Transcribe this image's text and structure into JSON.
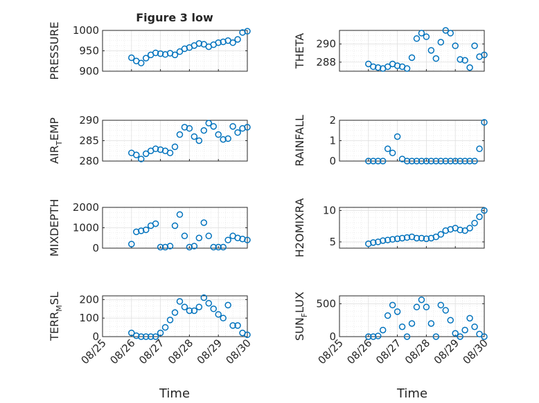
{
  "figure_title": "Figure 3 low",
  "x_label": "Time",
  "colors": {
    "marker": "#0072BD",
    "axis": "#262626",
    "grid": "#dfdfdf",
    "background": "#ffffff"
  },
  "chart_data": [
    {
      "type": "scatter",
      "ylabel": "PRESSURE",
      "ylabel_sub": "",
      "ylabel_tail": "",
      "title": "Figure 3 low",
      "ylim": [
        900,
        1000
      ],
      "yticks": [
        900,
        950,
        1000
      ],
      "xlim": [
        "2016-08-25",
        "2016-08-30"
      ],
      "xticks": [
        "08/25",
        "08/26",
        "08/27",
        "08/28",
        "08/29",
        "08/30"
      ],
      "grid": true,
      "x": [
        "2016-08-26T00:00",
        "2016-08-26T04:00",
        "2016-08-26T08:00",
        "2016-08-26T12:00",
        "2016-08-26T16:00",
        "2016-08-26T20:00",
        "2016-08-27T00:00",
        "2016-08-27T04:00",
        "2016-08-27T08:00",
        "2016-08-27T12:00",
        "2016-08-27T16:00",
        "2016-08-27T20:00",
        "2016-08-28T00:00",
        "2016-08-28T04:00",
        "2016-08-28T08:00",
        "2016-08-28T12:00",
        "2016-08-28T16:00",
        "2016-08-28T20:00",
        "2016-08-29T00:00",
        "2016-08-29T04:00",
        "2016-08-29T08:00",
        "2016-08-29T12:00",
        "2016-08-29T16:00",
        "2016-08-29T20:00",
        "2016-08-30T00:00"
      ],
      "y": [
        933,
        925,
        920,
        932,
        940,
        945,
        943,
        941,
        944,
        940,
        948,
        955,
        958,
        963,
        968,
        966,
        960,
        965,
        970,
        972,
        975,
        970,
        978,
        995,
        998
      ]
    },
    {
      "type": "scatter",
      "ylabel": "THETA",
      "ylabel_sub": "",
      "ylabel_tail": "",
      "ylim": [
        287,
        291.5
      ],
      "yticks": [
        288,
        290
      ],
      "xlim": [
        "2016-08-25",
        "2016-08-30"
      ],
      "xticks": [
        "08/25",
        "08/26",
        "08/27",
        "08/28",
        "08/29",
        "08/30"
      ],
      "grid": true,
      "x": [
        "2016-08-26T00:00",
        "2016-08-26T04:00",
        "2016-08-26T08:00",
        "2016-08-26T12:00",
        "2016-08-26T16:00",
        "2016-08-26T20:00",
        "2016-08-27T00:00",
        "2016-08-27T04:00",
        "2016-08-27T08:00",
        "2016-08-27T12:00",
        "2016-08-27T16:00",
        "2016-08-27T20:00",
        "2016-08-28T00:00",
        "2016-08-28T04:00",
        "2016-08-28T08:00",
        "2016-08-28T12:00",
        "2016-08-28T16:00",
        "2016-08-28T20:00",
        "2016-08-29T00:00",
        "2016-08-29T04:00",
        "2016-08-29T08:00",
        "2016-08-29T12:00",
        "2016-08-29T16:00",
        "2016-08-29T20:00",
        "2016-08-30T00:00"
      ],
      "y": [
        287.8,
        287.5,
        287.4,
        287.3,
        287.5,
        287.8,
        287.6,
        287.5,
        287.3,
        288.5,
        290.6,
        291.2,
        290.8,
        289.3,
        288.4,
        290.2,
        291.5,
        291.2,
        289.8,
        288.3,
        288.2,
        287.4,
        289.8,
        288.6,
        288.8
      ]
    },
    {
      "type": "scatter",
      "ylabel": "AIR",
      "ylabel_sub": "T",
      "ylabel_tail": "EMP",
      "ylim": [
        280,
        290
      ],
      "yticks": [
        280,
        285,
        290
      ],
      "xlim": [
        "2016-08-25",
        "2016-08-30"
      ],
      "xticks": [
        "08/25",
        "08/26",
        "08/27",
        "08/28",
        "08/29",
        "08/30"
      ],
      "grid": true,
      "x": [
        "2016-08-26T00:00",
        "2016-08-26T04:00",
        "2016-08-26T08:00",
        "2016-08-26T12:00",
        "2016-08-26T16:00",
        "2016-08-26T20:00",
        "2016-08-27T00:00",
        "2016-08-27T04:00",
        "2016-08-27T08:00",
        "2016-08-27T12:00",
        "2016-08-27T16:00",
        "2016-08-27T20:00",
        "2016-08-28T00:00",
        "2016-08-28T04:00",
        "2016-08-28T08:00",
        "2016-08-28T12:00",
        "2016-08-28T16:00",
        "2016-08-28T20:00",
        "2016-08-29T00:00",
        "2016-08-29T04:00",
        "2016-08-29T08:00",
        "2016-08-29T12:00",
        "2016-08-29T16:00",
        "2016-08-29T20:00",
        "2016-08-30T00:00"
      ],
      "y": [
        282.0,
        281.5,
        280.5,
        281.8,
        282.5,
        283.0,
        282.8,
        282.5,
        282.0,
        283.5,
        286.5,
        288.3,
        288.0,
        286.0,
        285.0,
        287.5,
        289.3,
        288.5,
        286.5,
        285.3,
        285.5,
        288.5,
        287.0,
        288.0,
        288.3
      ]
    },
    {
      "type": "scatter",
      "ylabel": "RAINFALL",
      "ylabel_sub": "",
      "ylabel_tail": "",
      "ylim": [
        0,
        2
      ],
      "yticks": [
        0,
        1,
        2
      ],
      "xlim": [
        "2016-08-25",
        "2016-08-30"
      ],
      "xticks": [
        "08/25",
        "08/26",
        "08/27",
        "08/28",
        "08/29",
        "08/30"
      ],
      "grid": true,
      "x": [
        "2016-08-26T00:00",
        "2016-08-26T04:00",
        "2016-08-26T08:00",
        "2016-08-26T12:00",
        "2016-08-26T16:00",
        "2016-08-26T20:00",
        "2016-08-27T00:00",
        "2016-08-27T04:00",
        "2016-08-27T08:00",
        "2016-08-27T12:00",
        "2016-08-27T16:00",
        "2016-08-27T20:00",
        "2016-08-28T00:00",
        "2016-08-28T04:00",
        "2016-08-28T08:00",
        "2016-08-28T12:00",
        "2016-08-28T16:00",
        "2016-08-28T20:00",
        "2016-08-29T00:00",
        "2016-08-29T04:00",
        "2016-08-29T08:00",
        "2016-08-29T12:00",
        "2016-08-29T16:00",
        "2016-08-29T20:00",
        "2016-08-30T00:00"
      ],
      "y": [
        0,
        0,
        0,
        0,
        0.6,
        0.4,
        1.2,
        0.1,
        0,
        0,
        0,
        0,
        0,
        0,
        0,
        0,
        0,
        0,
        0,
        0,
        0,
        0,
        0,
        0.6,
        1.9
      ]
    },
    {
      "type": "scatter",
      "ylabel": "MIXDEPTH",
      "ylabel_sub": "",
      "ylabel_tail": "",
      "ylim": [
        0,
        2000
      ],
      "yticks": [
        0,
        1000,
        2000
      ],
      "xlim": [
        "2016-08-25",
        "2016-08-30"
      ],
      "xticks": [
        "08/25",
        "08/26",
        "08/27",
        "08/28",
        "08/29",
        "08/30"
      ],
      "grid": true,
      "x": [
        "2016-08-26T00:00",
        "2016-08-26T04:00",
        "2016-08-26T08:00",
        "2016-08-26T12:00",
        "2016-08-26T16:00",
        "2016-08-26T20:00",
        "2016-08-27T00:00",
        "2016-08-27T04:00",
        "2016-08-27T08:00",
        "2016-08-27T12:00",
        "2016-08-27T16:00",
        "2016-08-27T20:00",
        "2016-08-28T00:00",
        "2016-08-28T04:00",
        "2016-08-28T08:00",
        "2016-08-28T12:00",
        "2016-08-28T16:00",
        "2016-08-28T20:00",
        "2016-08-29T00:00",
        "2016-08-29T04:00",
        "2016-08-29T08:00",
        "2016-08-29T12:00",
        "2016-08-29T16:00",
        "2016-08-29T20:00",
        "2016-08-30T00:00"
      ],
      "y": [
        200,
        800,
        850,
        900,
        1100,
        1200,
        50,
        50,
        100,
        1100,
        1650,
        600,
        50,
        100,
        500,
        1250,
        600,
        50,
        50,
        50,
        400,
        600,
        500,
        450,
        400
      ]
    },
    {
      "type": "scatter",
      "ylabel": "H2OMIXRA",
      "ylabel_sub": "",
      "ylabel_tail": "",
      "ylim": [
        4,
        10.5
      ],
      "yticks": [
        5,
        10
      ],
      "xlim": [
        "2016-08-25",
        "2016-08-30"
      ],
      "xticks": [
        "08/25",
        "08/26",
        "08/27",
        "08/28",
        "08/29",
        "08/30"
      ],
      "grid": true,
      "x": [
        "2016-08-26T00:00",
        "2016-08-26T04:00",
        "2016-08-26T08:00",
        "2016-08-26T12:00",
        "2016-08-26T16:00",
        "2016-08-26T20:00",
        "2016-08-27T00:00",
        "2016-08-27T04:00",
        "2016-08-27T08:00",
        "2016-08-27T12:00",
        "2016-08-27T16:00",
        "2016-08-27T20:00",
        "2016-08-28T00:00",
        "2016-08-28T04:00",
        "2016-08-28T08:00",
        "2016-08-28T12:00",
        "2016-08-28T16:00",
        "2016-08-28T20:00",
        "2016-08-29T00:00",
        "2016-08-29T04:00",
        "2016-08-29T08:00",
        "2016-08-29T12:00",
        "2016-08-29T16:00",
        "2016-08-29T20:00",
        "2016-08-30T00:00"
      ],
      "y": [
        4.7,
        4.9,
        5.0,
        5.2,
        5.3,
        5.4,
        5.5,
        5.6,
        5.7,
        5.8,
        5.6,
        5.6,
        5.5,
        5.6,
        5.8,
        6.2,
        6.8,
        7.0,
        7.2,
        6.9,
        6.8,
        7.2,
        8.0,
        9.0,
        10.0
      ]
    },
    {
      "type": "scatter",
      "ylabel": "TERR",
      "ylabel_sub": "M",
      "ylabel_tail": "SL",
      "ylim": [
        0,
        220
      ],
      "yticks": [
        0,
        100,
        200
      ],
      "xlim": [
        "2016-08-25",
        "2016-08-30"
      ],
      "xticks": [
        "08/25",
        "08/26",
        "08/27",
        "08/28",
        "08/29",
        "08/30"
      ],
      "grid": true,
      "x": [
        "2016-08-26T00:00",
        "2016-08-26T04:00",
        "2016-08-26T08:00",
        "2016-08-26T12:00",
        "2016-08-26T16:00",
        "2016-08-26T20:00",
        "2016-08-27T00:00",
        "2016-08-27T04:00",
        "2016-08-27T08:00",
        "2016-08-27T12:00",
        "2016-08-27T16:00",
        "2016-08-27T20:00",
        "2016-08-28T00:00",
        "2016-08-28T04:00",
        "2016-08-28T08:00",
        "2016-08-28T12:00",
        "2016-08-28T16:00",
        "2016-08-28T20:00",
        "2016-08-29T00:00",
        "2016-08-29T04:00",
        "2016-08-29T08:00",
        "2016-08-29T12:00",
        "2016-08-29T16:00",
        "2016-08-29T20:00",
        "2016-08-30T00:00"
      ],
      "y": [
        20,
        5,
        0,
        0,
        0,
        0,
        20,
        50,
        90,
        130,
        190,
        160,
        140,
        140,
        160,
        210,
        180,
        150,
        120,
        100,
        170,
        60,
        60,
        20,
        10
      ]
    },
    {
      "type": "scatter",
      "ylabel": "SUN",
      "ylabel_sub": "F",
      "ylabel_tail": "LUX",
      "ylim": [
        0,
        620
      ],
      "yticks": [
        0,
        500
      ],
      "xlim": [
        "2016-08-25",
        "2016-08-30"
      ],
      "xticks": [
        "08/25",
        "08/26",
        "08/27",
        "08/28",
        "08/29",
        "08/30"
      ],
      "grid": true,
      "x": [
        "2016-08-26T00:00",
        "2016-08-26T04:00",
        "2016-08-26T08:00",
        "2016-08-26T12:00",
        "2016-08-26T16:00",
        "2016-08-26T20:00",
        "2016-08-27T00:00",
        "2016-08-27T04:00",
        "2016-08-27T08:00",
        "2016-08-27T12:00",
        "2016-08-27T16:00",
        "2016-08-27T20:00",
        "2016-08-28T00:00",
        "2016-08-28T04:00",
        "2016-08-28T08:00",
        "2016-08-28T12:00",
        "2016-08-28T16:00",
        "2016-08-28T20:00",
        "2016-08-29T00:00",
        "2016-08-29T04:00",
        "2016-08-29T08:00",
        "2016-08-29T12:00",
        "2016-08-29T16:00",
        "2016-08-29T20:00",
        "2016-08-30T00:00"
      ],
      "y": [
        0,
        0,
        10,
        100,
        320,
        480,
        380,
        150,
        0,
        200,
        450,
        560,
        450,
        200,
        0,
        480,
        400,
        250,
        50,
        0,
        100,
        280,
        150,
        40,
        0
      ]
    }
  ]
}
